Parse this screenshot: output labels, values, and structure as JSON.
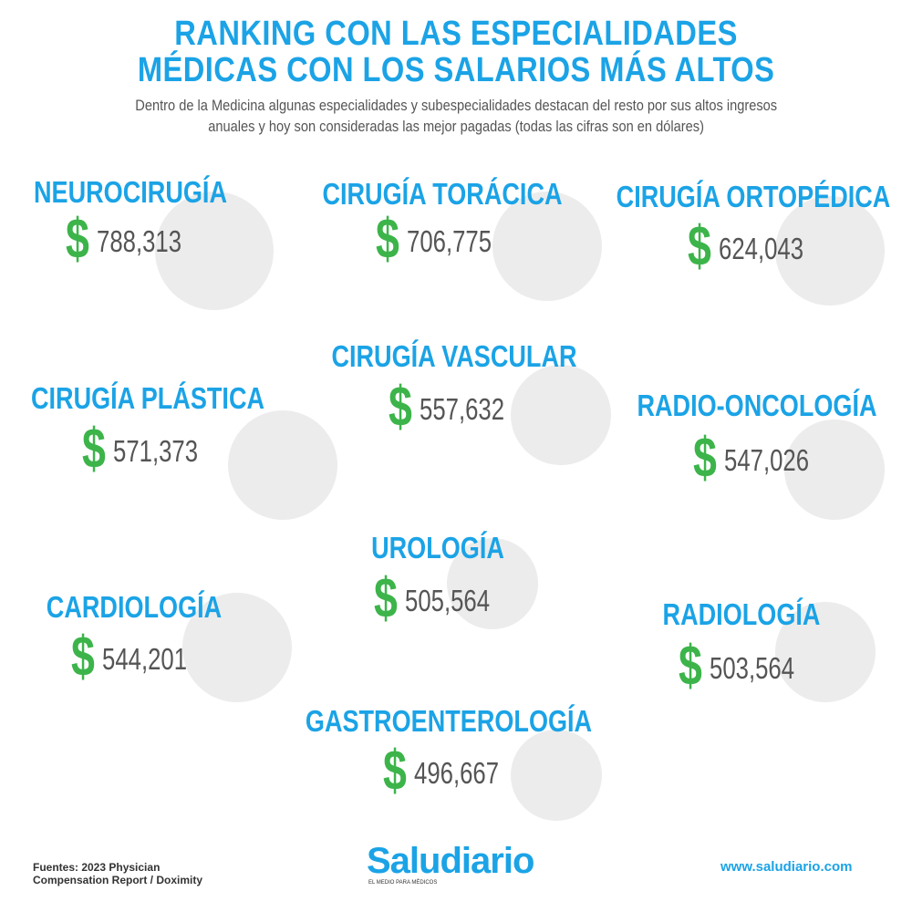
{
  "header": {
    "title": [
      "RANKING CON LAS ESPECIALIDADES",
      "MÉDICAS CON LOS SALARIOS MÁS ALTOS"
    ],
    "subtitle": [
      "Dentro de la Medicina algunas especialidades y subespecialidades destacan del resto por sus altos ingresos",
      "anuales y hoy son consideradas las mejor pagadas (todas las cifras son en dólares)"
    ]
  },
  "currency": "$",
  "items": [
    {
      "name": "NEUROCIRUGÍA",
      "value": "788,313"
    },
    {
      "name": "CIRUGÍA TORÁCICA",
      "value": "706,775"
    },
    {
      "name": "CIRUGÍA ORTOPÉDICA",
      "value": "624,043"
    },
    {
      "name": "CIRUGÍA PLÁSTICA",
      "value": "571,373"
    },
    {
      "name": "CIRUGÍA VASCULAR",
      "value": "557,632"
    },
    {
      "name": "RADIO-ONCOLOGÍA",
      "value": "547,026"
    },
    {
      "name": "UROLOGÍA",
      "value": "505,564"
    },
    {
      "name": "CARDIOLOGÍA",
      "value": "544,201"
    },
    {
      "name": "RADIOLOGÍA",
      "value": "503,564"
    },
    {
      "name": "GASTROENTEROLOGÍA",
      "value": "496,667"
    }
  ],
  "footer": {
    "sources": [
      "Fuentes: 2023 Physician",
      "Compensation Report / Doximity"
    ],
    "logo": "Saludiario",
    "tagline": "EL MEDIO PARA MÉDICOS",
    "url": "www.saludiario.com"
  }
}
